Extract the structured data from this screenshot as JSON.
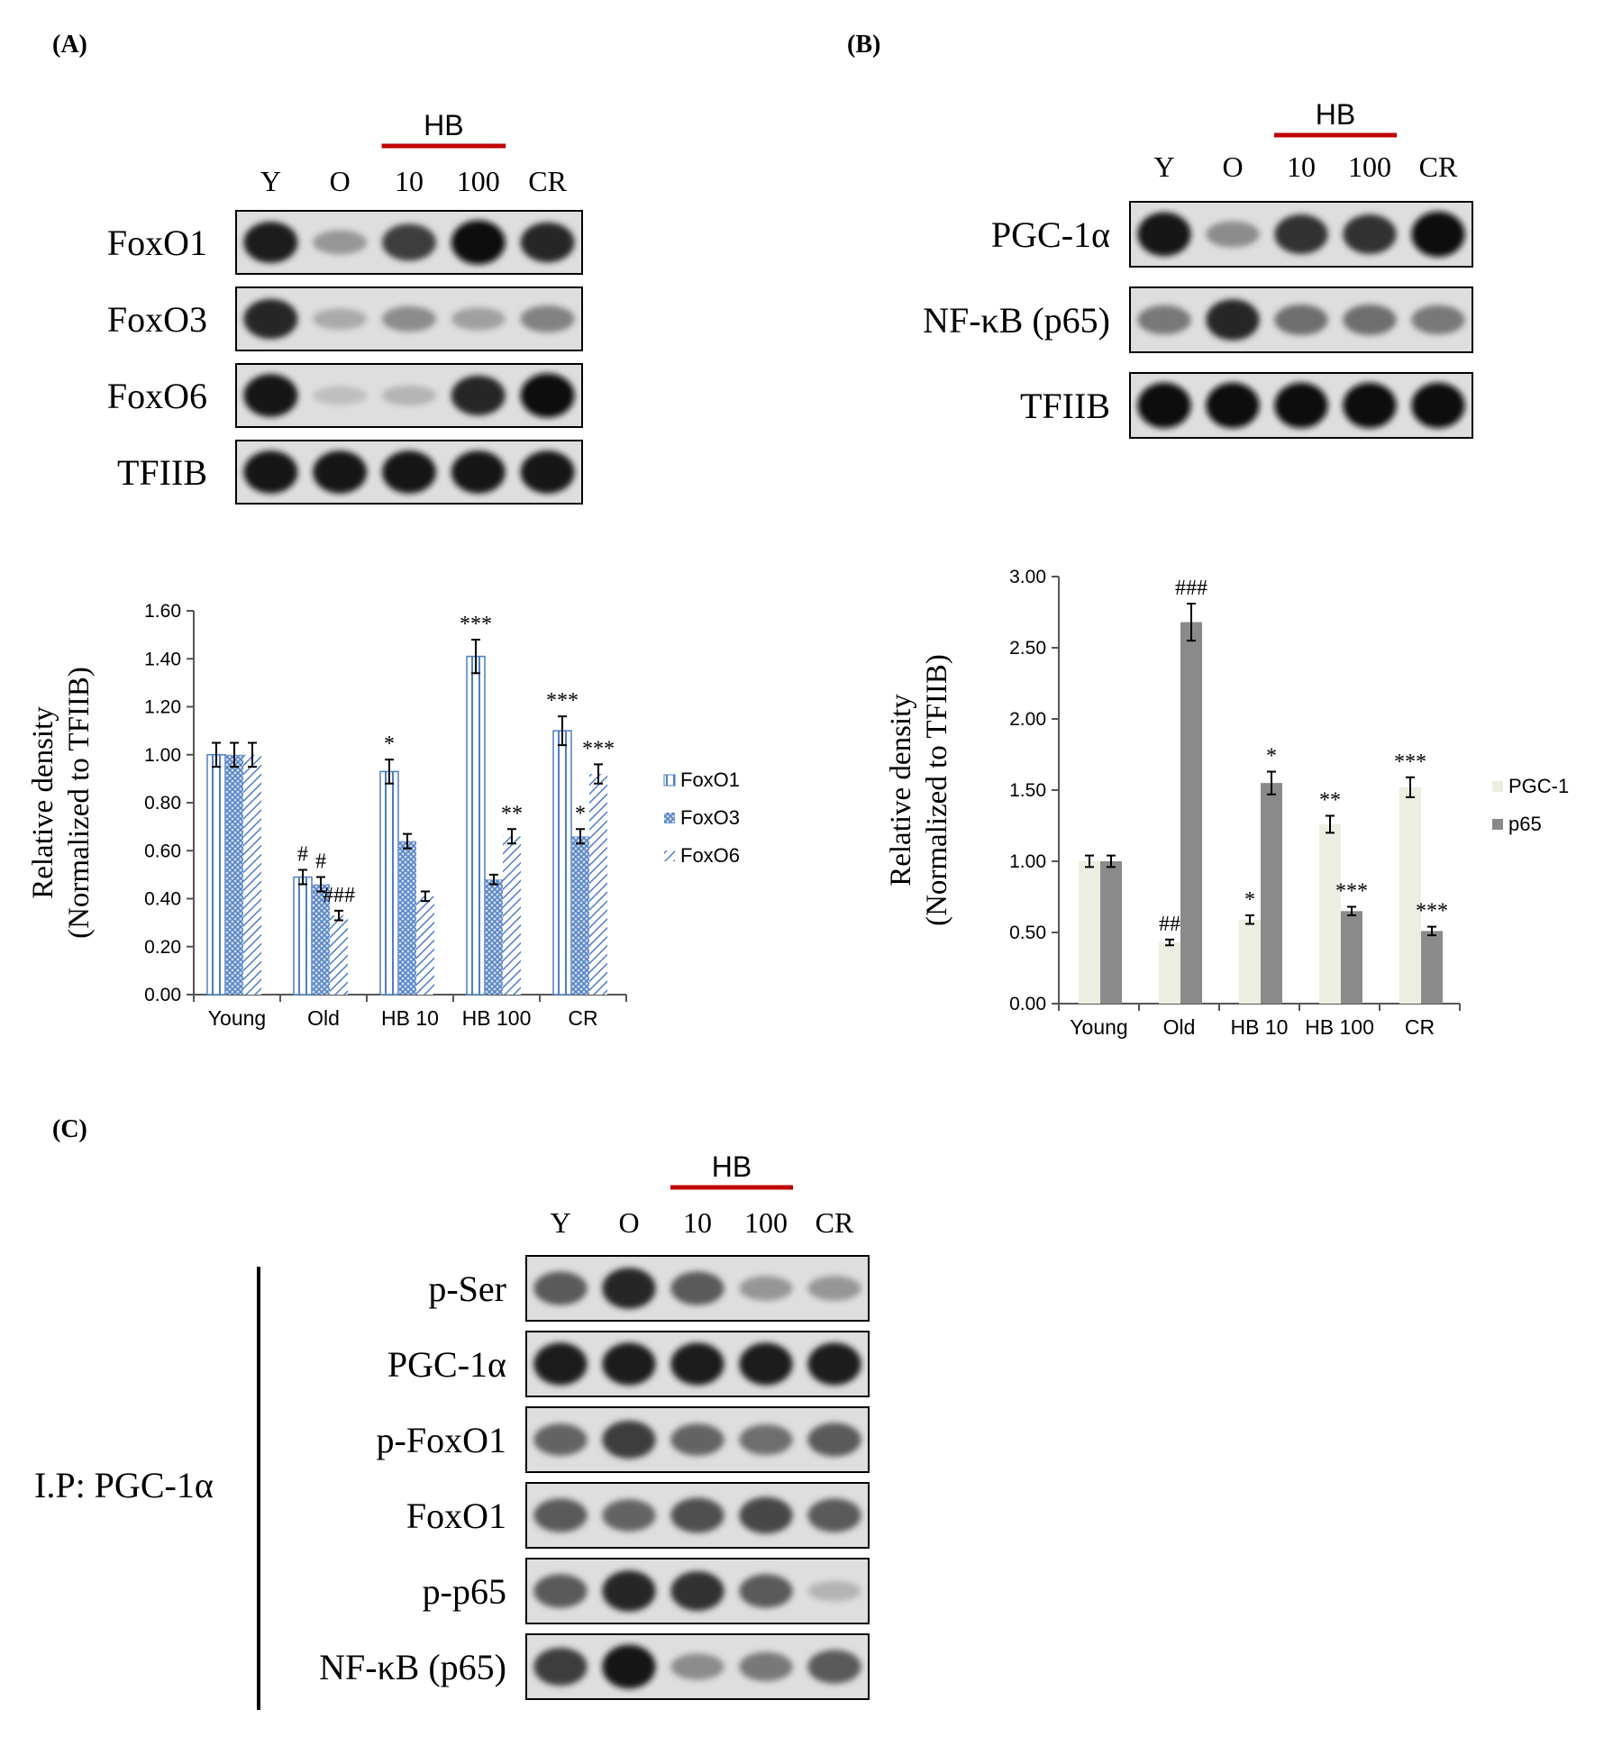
{
  "panels": {
    "A": {
      "label": "(A)",
      "blot": {
        "group_label": "HB",
        "lanes": [
          "Y",
          "O",
          "10",
          "100",
          "CR"
        ],
        "rows": [
          {
            "label": "FoxO1",
            "intensity": [
              0.9,
              0.3,
              0.75,
              1.0,
              0.85
            ]
          },
          {
            "label": "FoxO3",
            "intensity": [
              0.85,
              0.2,
              0.35,
              0.25,
              0.4
            ]
          },
          {
            "label": "FoxO6",
            "intensity": [
              0.95,
              0.1,
              0.15,
              0.85,
              1.0
            ]
          },
          {
            "label": "TFIIB",
            "intensity": [
              0.95,
              0.95,
              0.95,
              0.95,
              0.95
            ]
          }
        ]
      }
    },
    "B": {
      "label": "(B)",
      "blot": {
        "group_label": "HB",
        "lanes": [
          "Y",
          "O",
          "10",
          "100",
          "CR"
        ],
        "rows": [
          {
            "label": "PGC-1α",
            "intensity": [
              0.95,
              0.35,
              0.8,
              0.8,
              1.0
            ]
          },
          {
            "label": "NF-κB (p65)",
            "intensity": [
              0.45,
              0.85,
              0.5,
              0.5,
              0.45
            ]
          },
          {
            "label": "TFIIB",
            "intensity": [
              1.0,
              1.0,
              1.0,
              1.0,
              1.0
            ]
          }
        ]
      }
    },
    "C": {
      "label": "(C)",
      "ip_label": "I.P: PGC-1α",
      "blot": {
        "group_label": "HB",
        "lanes": [
          "Y",
          "O",
          "10",
          "100",
          "CR"
        ],
        "rows": [
          {
            "label": "p-Ser",
            "intensity": [
              0.6,
              0.85,
              0.6,
              0.3,
              0.3
            ]
          },
          {
            "label": "PGC-1α",
            "intensity": [
              0.9,
              0.9,
              0.9,
              0.9,
              0.9
            ]
          },
          {
            "label": "p-FoxO1",
            "intensity": [
              0.55,
              0.75,
              0.55,
              0.5,
              0.6
            ]
          },
          {
            "label": "FoxO1",
            "intensity": [
              0.6,
              0.55,
              0.65,
              0.7,
              0.6
            ]
          },
          {
            "label": "p-p65",
            "intensity": [
              0.6,
              0.85,
              0.8,
              0.6,
              0.15
            ]
          },
          {
            "label": "NF-κB (p65)",
            "intensity": [
              0.75,
              0.95,
              0.35,
              0.45,
              0.6
            ]
          }
        ]
      }
    }
  },
  "chart_data": [
    {
      "type": "bar",
      "panel": "A",
      "ylabel": "Relative density",
      "ylabel2": "(Normalized to TFIIB)",
      "categories": [
        "Young",
        "Old",
        "HB 10",
        "HB 100",
        "CR"
      ],
      "ylim": [
        0,
        1.6
      ],
      "yticks": [
        "0.00",
        "0.20",
        "0.40",
        "0.60",
        "0.80",
        "1.00",
        "1.20",
        "1.40",
        "1.60"
      ],
      "legend_position": "right",
      "series": [
        {
          "name": "FoxO1",
          "values": [
            1.0,
            0.49,
            0.93,
            1.41,
            1.1
          ],
          "errors": [
            0.05,
            0.03,
            0.05,
            0.07,
            0.06
          ],
          "annotations": [
            "",
            "#",
            "*",
            "***",
            "***"
          ],
          "color": "#4f7ec2"
        },
        {
          "name": "FoxO3",
          "values": [
            1.0,
            0.46,
            0.64,
            0.48,
            0.66
          ],
          "errors": [
            0.05,
            0.03,
            0.03,
            0.02,
            0.03
          ],
          "annotations": [
            "",
            "#",
            "",
            "",
            "*"
          ],
          "color": "#4f7ec2"
        },
        {
          "name": "FoxO6",
          "values": [
            1.0,
            0.33,
            0.41,
            0.66,
            0.92
          ],
          "errors": [
            0.05,
            0.02,
            0.02,
            0.03,
            0.04
          ],
          "annotations": [
            "",
            "###",
            "",
            "**",
            "***"
          ],
          "color": "#4f7ec2"
        }
      ]
    },
    {
      "type": "bar",
      "panel": "B",
      "ylabel": "Relative density",
      "ylabel2": "(Normalized to TFIIB)",
      "categories": [
        "Young",
        "Old",
        "HB 10",
        "HB 100",
        "CR"
      ],
      "ylim": [
        0,
        3.0
      ],
      "yticks": [
        "0.00",
        "0.50",
        "1.00",
        "1.50",
        "2.00",
        "2.50",
        "3.00"
      ],
      "legend_position": "right",
      "series": [
        {
          "name": "PGC-1",
          "values": [
            1.0,
            0.43,
            0.59,
            1.26,
            1.52
          ],
          "errors": [
            0.04,
            0.02,
            0.03,
            0.06,
            0.07
          ],
          "annotations": [
            "",
            "##",
            "*",
            "**",
            "***"
          ],
          "color": "#eeede2"
        },
        {
          "name": "p65",
          "values": [
            1.0,
            2.68,
            1.55,
            0.65,
            0.51
          ],
          "errors": [
            0.04,
            0.13,
            0.08,
            0.03,
            0.03
          ],
          "annotations": [
            "",
            "###",
            "*",
            "***",
            "***"
          ],
          "color": "#8a8a8a"
        }
      ]
    }
  ]
}
